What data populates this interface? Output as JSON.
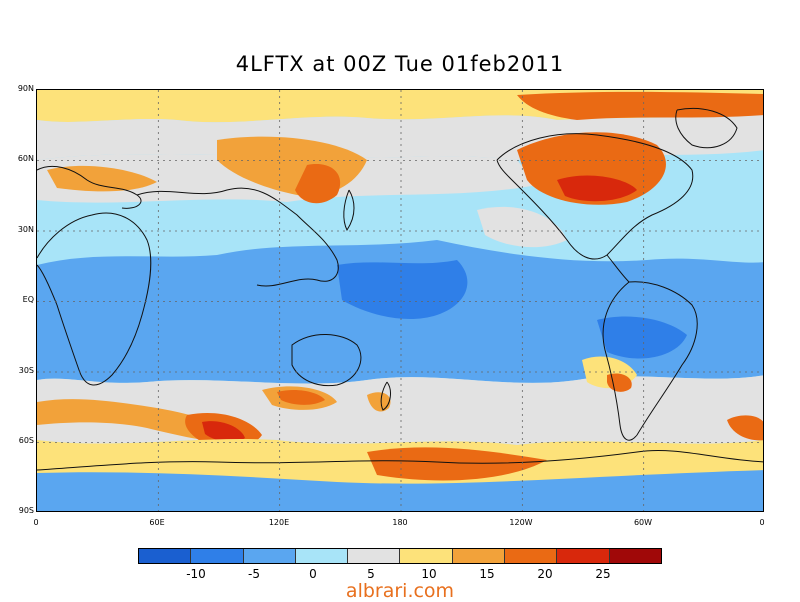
{
  "title": "4LFTX at 00Z Tue 01feb2011",
  "lat_labels": [
    "90N",
    "60N",
    "30N",
    "EQ",
    "30S",
    "60S",
    "90S"
  ],
  "lon_labels": [
    "0",
    "60E",
    "120E",
    "180",
    "120W",
    "60W",
    "0"
  ],
  "colorbar": {
    "colors": [
      "#1a5fd0",
      "#2f7fe8",
      "#5aa6f0",
      "#a8e4f8",
      "#e2e2e2",
      "#fde27a",
      "#f2a23a",
      "#ea6a14",
      "#d8280c",
      "#a00808"
    ],
    "labels": [
      "-10",
      "-5",
      "0",
      "5",
      "10",
      "15",
      "20",
      "25"
    ]
  },
  "palette": {
    "ocean_base": "#a8e4f8",
    "deep_blue": "#5aa6f0",
    "mid_blue": "#2f7fe8",
    "neutral": "#e2e2e2",
    "yellow": "#fde27a",
    "orange": "#f2a23a",
    "dark_orange": "#ea6a14",
    "red": "#d8280c",
    "coast": "#111111",
    "grid": "#666666"
  },
  "watermark": "albrari.com"
}
